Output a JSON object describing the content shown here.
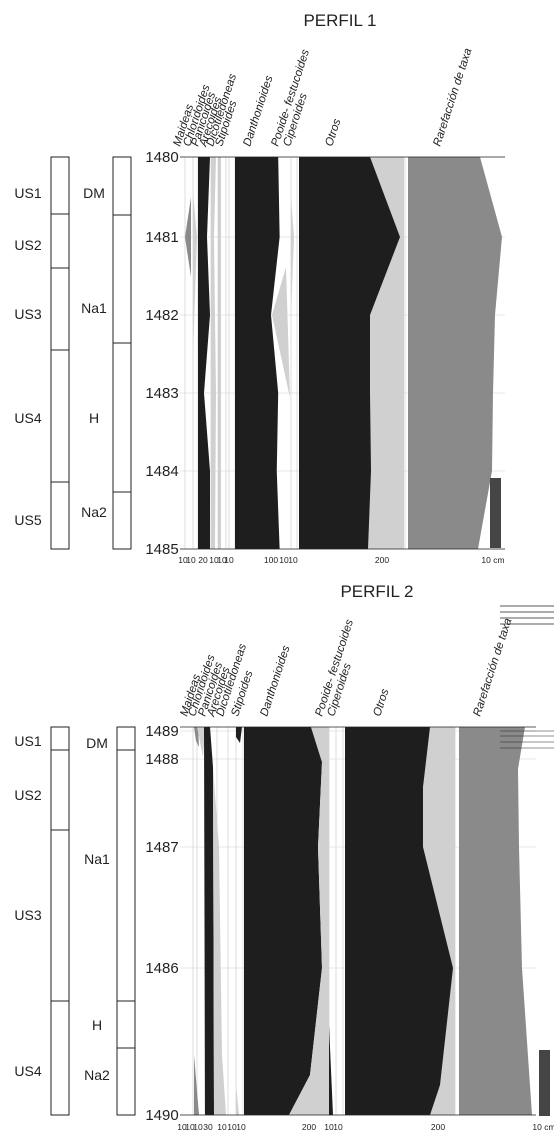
{
  "chart_data": [
    {
      "type": "area",
      "title": "PERFIL 1",
      "ylim": [
        1480,
        1485
      ],
      "depth_ticks": [
        "1480",
        "1481",
        "1482",
        "1483",
        "1484",
        "1485"
      ],
      "us_units": [
        "US1",
        "US2",
        "US3",
        "US4",
        "US5"
      ],
      "units": [
        "DM",
        "Na1",
        "H",
        "Na2"
      ],
      "taxa": [
        "Maideas",
        "Chloridoides",
        "Panicoides",
        "Arecoides",
        "Dicotiledoneas",
        "Stipoides",
        "Danthonioides",
        "Pooide- festucoides",
        "Ciperoides",
        "Otros",
        "Rarefacción de taxa"
      ],
      "x_tick_labels": [
        "10",
        "10",
        "20",
        "10",
        "10",
        "10",
        "100",
        "10",
        "10",
        "200",
        "10 cm"
      ],
      "series": [
        {
          "name": "Danthonioides",
          "depth": [
            1480,
            1481,
            1482,
            1483,
            1484,
            1485
          ],
          "values": [
            60,
            62,
            50,
            60,
            58,
            62
          ]
        },
        {
          "name": "Otros",
          "depth": [
            1480,
            1481,
            1482,
            1483,
            1484,
            1485
          ],
          "values": [
            145,
            185,
            135,
            140,
            143,
            138
          ]
        },
        {
          "name": "Rarefacción de taxa",
          "depth": [
            1480,
            1481,
            1482,
            1483,
            1484,
            1485
          ],
          "values": [
            0.73,
            0.82,
            0.73,
            0.73,
            0.73,
            0.58
          ]
        }
      ]
    },
    {
      "type": "area",
      "title": "PERFIL 2",
      "ylim": [
        1489,
        1490
      ],
      "depth_ticks": [
        "1489",
        "1488",
        "1487",
        "1486",
        "1490"
      ],
      "us_units": [
        "US1",
        "US2",
        "US3",
        "US4"
      ],
      "units": [
        "DM",
        "Na1",
        "H",
        "Na2"
      ],
      "taxa": [
        "Maideas",
        "Chloridoides",
        "Panicoides",
        "Arecoides",
        "Dicotiledoneas",
        "Stipoides",
        "Danthonioides",
        "Pooide- festucoides",
        "Ciperoides",
        "Otros",
        "Rarefacción de taxa"
      ],
      "x_tick_labels": [
        "10",
        "10",
        "10",
        "30",
        "10",
        "10",
        "10",
        "200",
        "10",
        "10",
        "200",
        "10 cm"
      ],
      "series": [
        {
          "name": "Danthonioides",
          "depth": [
            "1489",
            "1488",
            "1487",
            "1486",
            "1490"
          ],
          "values": [
            150,
            150,
            148,
            152,
            80
          ]
        },
        {
          "name": "Otros",
          "depth": [
            "1489",
            "1488",
            "1487",
            "1486",
            "1490"
          ],
          "values": [
            170,
            160,
            165,
            185,
            120
          ]
        },
        {
          "name": "Rarefacción de taxa",
          "depth": [
            "1489",
            "1488",
            "1487",
            "1486",
            "1490"
          ],
          "values": [
            0.68,
            0.6,
            0.6,
            0.7,
            0.76
          ]
        }
      ]
    }
  ],
  "colors": {
    "dark": "#1e1e1e",
    "light": "#d0d0d0",
    "grey": "#8a8a8a",
    "bar": "#454545"
  }
}
